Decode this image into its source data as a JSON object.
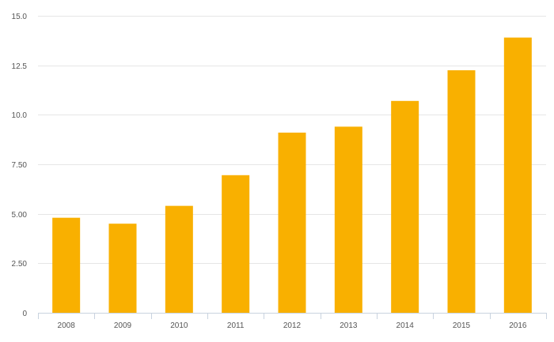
{
  "chart_data": {
    "type": "bar",
    "categories": [
      "2008",
      "2009",
      "2010",
      "2011",
      "2012",
      "2013",
      "2014",
      "2015",
      "2016"
    ],
    "values": [
      4.8,
      4.5,
      5.4,
      6.95,
      9.1,
      9.4,
      10.7,
      12.25,
      13.9
    ],
    "title": "",
    "xlabel": "",
    "ylabel": "",
    "ylim": [
      0,
      15
    ],
    "yticks": [
      0,
      2.5,
      5,
      7.5,
      10,
      12.5,
      15
    ],
    "ytick_labels": [
      "0",
      "2.50",
      "5.00",
      "7.50",
      "10.0",
      "12.5",
      "15.0"
    ],
    "grid": true,
    "legend": "none",
    "colors": {
      "bar": "#F9B000",
      "grid": "#E6E6E6",
      "axis": "#C9D3DF",
      "text": "#555555"
    }
  }
}
